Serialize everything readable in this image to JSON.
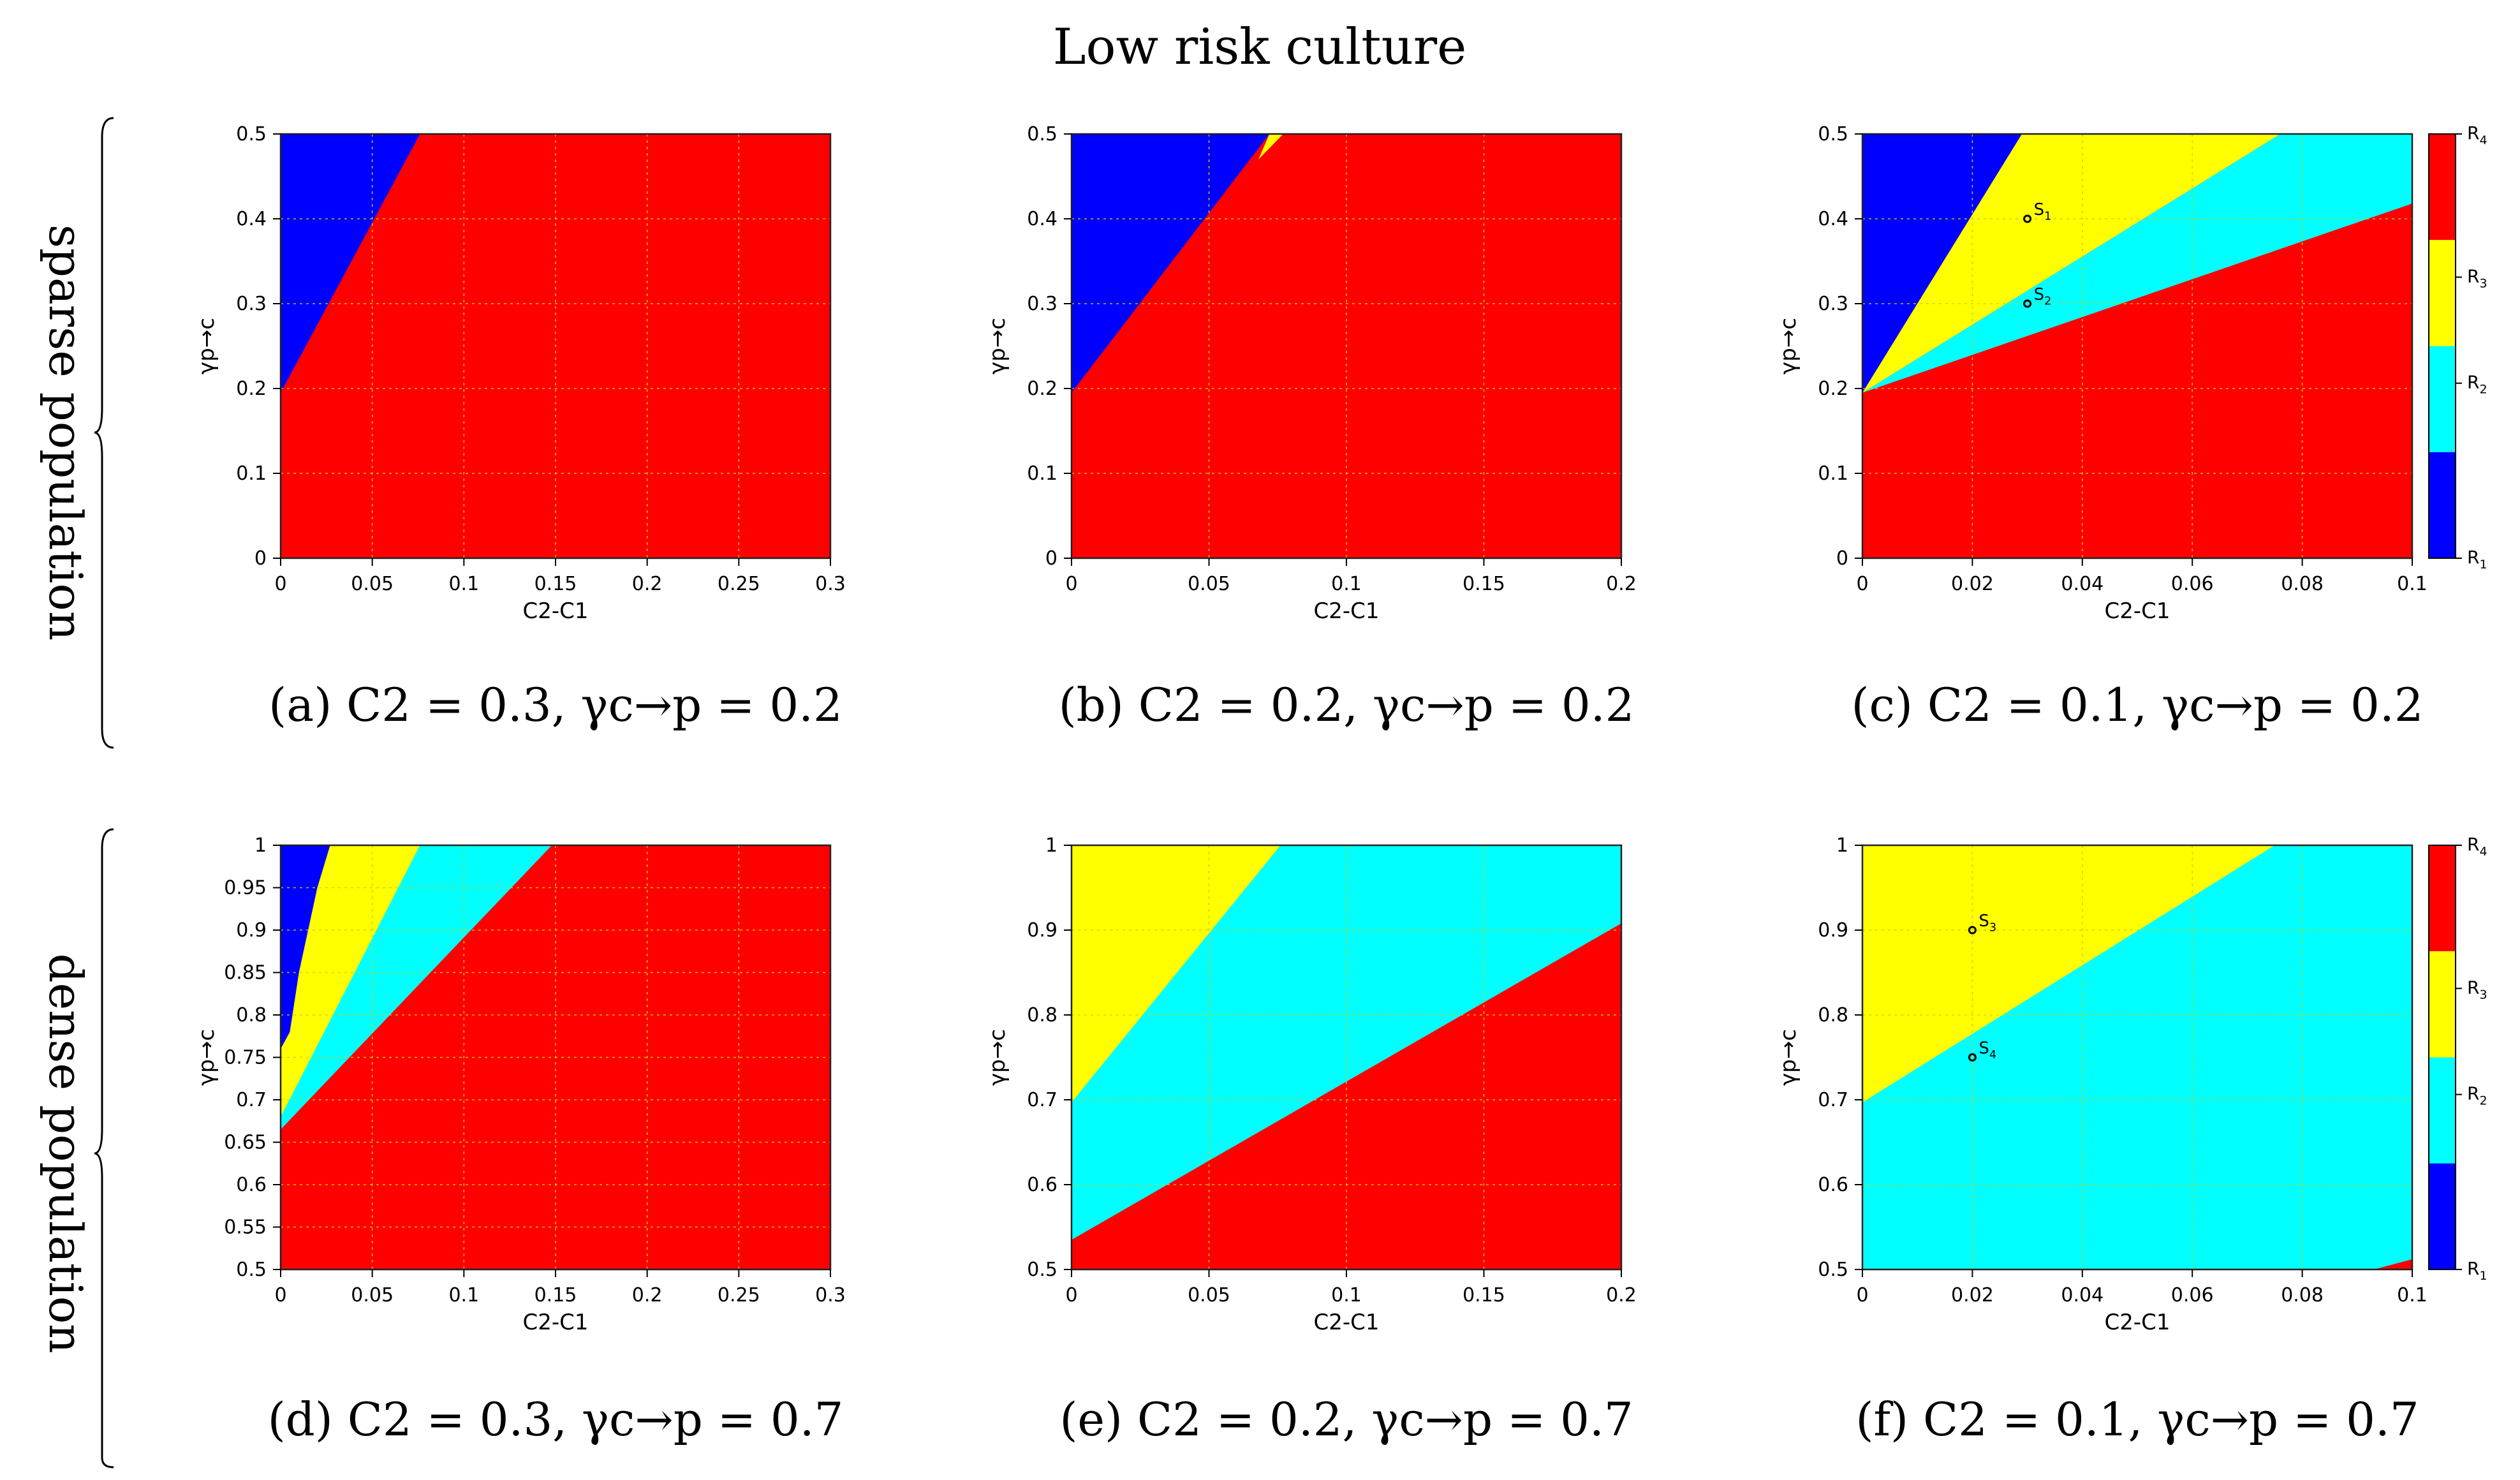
{
  "figure": {
    "title": "Low risk culture",
    "row_labels": [
      "sparse population",
      "dense population"
    ]
  },
  "colors": {
    "R1": "#0000ff",
    "R2": "#00ffff",
    "R3": "#ffff00",
    "R4": "#ff0000",
    "grid": "#c8d200"
  },
  "colorbar": {
    "labels": [
      "R4",
      "R3",
      "R2",
      "R1"
    ]
  },
  "chart_data": [
    {
      "type": "heatmap",
      "id": "a",
      "caption": "(a) C2 = 0.3, γc→p = 0.2",
      "xlabel": "C2-C1",
      "ylabel": "γp→c",
      "xlim": [
        0,
        0.3
      ],
      "ylim": [
        0,
        0.5
      ],
      "xticks": [
        0,
        0.05,
        0.1,
        0.15,
        0.2,
        0.25,
        0.3
      ],
      "xtick_labels": [
        "0",
        "0.05",
        "0.1",
        "0.15",
        "0.2",
        "0.25",
        "0.3"
      ],
      "yticks": [
        0,
        0.1,
        0.2,
        0.3,
        0.4,
        0.5
      ],
      "ytick_labels": [
        "0",
        "0.1",
        "0.2",
        "0.3",
        "0.4",
        "0.5"
      ],
      "background": "R4",
      "regions": [
        {
          "region": "R1",
          "points": [
            [
              0,
              0.195
            ],
            [
              0,
              0.5
            ],
            [
              0.076,
              0.5
            ]
          ]
        }
      ]
    },
    {
      "type": "heatmap",
      "id": "b",
      "caption": "(b) C2 = 0.2, γc→p = 0.2",
      "xlabel": "C2-C1",
      "ylabel": "γp→c",
      "xlim": [
        0,
        0.2
      ],
      "ylim": [
        0,
        0.5
      ],
      "xticks": [
        0,
        0.05,
        0.1,
        0.15,
        0.2
      ],
      "xtick_labels": [
        "0",
        "0.05",
        "0.1",
        "0.15",
        "0.2"
      ],
      "yticks": [
        0,
        0.1,
        0.2,
        0.3,
        0.4,
        0.5
      ],
      "ytick_labels": [
        "0",
        "0.1",
        "0.2",
        "0.3",
        "0.4",
        "0.5"
      ],
      "background": "R4",
      "regions": [
        {
          "region": "R3",
          "points": [
            [
              0.068,
              0.47
            ],
            [
              0.072,
              0.5
            ],
            [
              0.077,
              0.5
            ]
          ]
        },
        {
          "region": "R1",
          "points": [
            [
              0,
              0.195
            ],
            [
              0,
              0.5
            ],
            [
              0.072,
              0.5
            ]
          ]
        }
      ]
    },
    {
      "type": "heatmap",
      "id": "c",
      "caption": "(c) C2 = 0.1, γc→p = 0.2",
      "xlabel": "C2-C1",
      "ylabel": "γp→c",
      "xlim": [
        0,
        0.1
      ],
      "ylim": [
        0,
        0.5
      ],
      "xticks": [
        0,
        0.02,
        0.04,
        0.06,
        0.08,
        0.1
      ],
      "xtick_labels": [
        "0",
        "0.02",
        "0.04",
        "0.06",
        "0.08",
        "0.1"
      ],
      "yticks": [
        0,
        0.1,
        0.2,
        0.3,
        0.4,
        0.5
      ],
      "ytick_labels": [
        "0",
        "0.1",
        "0.2",
        "0.3",
        "0.4",
        "0.5"
      ],
      "background": "R4",
      "colorbar": true,
      "regions": [
        {
          "region": "R2",
          "points": [
            [
              0,
              0.195
            ],
            [
              0.076,
              0.5
            ],
            [
              0.1,
              0.5
            ],
            [
              0.1,
              0.418
            ]
          ]
        },
        {
          "region": "R3",
          "points": [
            [
              0,
              0.195
            ],
            [
              0.029,
              0.5
            ],
            [
              0.076,
              0.5
            ]
          ]
        },
        {
          "region": "R1",
          "points": [
            [
              0,
              0.195
            ],
            [
              0,
              0.5
            ],
            [
              0.029,
              0.5
            ]
          ]
        }
      ],
      "markers": [
        {
          "label": "S1",
          "x": 0.03,
          "y": 0.4
        },
        {
          "label": "S2",
          "x": 0.03,
          "y": 0.3
        }
      ]
    },
    {
      "type": "heatmap",
      "id": "d",
      "caption": "(d) C2 = 0.3, γc→p = 0.7",
      "xlabel": "C2-C1",
      "ylabel": "γp→c",
      "xlim": [
        0,
        0.3
      ],
      "ylim": [
        0.5,
        1
      ],
      "xticks": [
        0,
        0.05,
        0.1,
        0.15,
        0.2,
        0.25,
        0.3
      ],
      "xtick_labels": [
        "0",
        "0.05",
        "0.1",
        "0.15",
        "0.2",
        "0.25",
        "0.3"
      ],
      "yticks": [
        0.5,
        0.55,
        0.6,
        0.65,
        0.7,
        0.75,
        0.8,
        0.85,
        0.9,
        0.95,
        1
      ],
      "ytick_labels": [
        "0.5",
        "0.55",
        "0.6",
        "0.65",
        "0.7",
        "0.75",
        "0.8",
        "0.85",
        "0.9",
        "0.95",
        "1"
      ],
      "background": "R4",
      "regions": [
        {
          "region": "R2",
          "points": [
            [
              0,
              0.665
            ],
            [
              0,
              1
            ],
            [
              0.148,
              1
            ]
          ]
        },
        {
          "region": "R3",
          "points": [
            [
              0,
              0.68
            ],
            [
              0,
              1
            ],
            [
              0.076,
              1
            ]
          ]
        },
        {
          "region": "R1",
          "points": [
            [
              0,
              0.76
            ],
            [
              0,
              1
            ],
            [
              0.027,
              1
            ],
            [
              0.02,
              0.95
            ],
            [
              0.01,
              0.85
            ],
            [
              0.005,
              0.78
            ]
          ]
        }
      ]
    },
    {
      "type": "heatmap",
      "id": "e",
      "caption": "(e) C2 = 0.2, γc→p = 0.7",
      "xlabel": "C2-C1",
      "ylabel": "γp→c",
      "xlim": [
        0,
        0.2
      ],
      "ylim": [
        0.5,
        1
      ],
      "xticks": [
        0,
        0.05,
        0.1,
        0.15,
        0.2
      ],
      "xtick_labels": [
        "0",
        "0.05",
        "0.1",
        "0.15",
        "0.2"
      ],
      "yticks": [
        0.5,
        0.6,
        0.7,
        0.8,
        0.9,
        1
      ],
      "ytick_labels": [
        "0.5",
        "0.6",
        "0.7",
        "0.8",
        "0.9",
        "1"
      ],
      "background": "R4",
      "regions": [
        {
          "region": "R2",
          "points": [
            [
              0,
              0.535
            ],
            [
              0,
              1
            ],
            [
              0.2,
              1
            ],
            [
              0.2,
              0.908
            ]
          ]
        },
        {
          "region": "R3",
          "points": [
            [
              0,
              0.697
            ],
            [
              0,
              1
            ],
            [
              0.076,
              1
            ]
          ]
        }
      ]
    },
    {
      "type": "heatmap",
      "id": "f",
      "caption": "(f) C2 = 0.1, γc→p = 0.7",
      "xlabel": "C2-C1",
      "ylabel": "γp→c",
      "xlim": [
        0,
        0.1
      ],
      "ylim": [
        0.5,
        1
      ],
      "xticks": [
        0,
        0.02,
        0.04,
        0.06,
        0.08,
        0.1
      ],
      "xtick_labels": [
        "0",
        "0.02",
        "0.04",
        "0.06",
        "0.08",
        "0.1"
      ],
      "yticks": [
        0.5,
        0.6,
        0.7,
        0.8,
        0.9,
        1
      ],
      "ytick_labels": [
        "0.5",
        "0.6",
        "0.7",
        "0.8",
        "0.9",
        "1"
      ],
      "background": "R2",
      "colorbar": true,
      "regions": [
        {
          "region": "R3",
          "points": [
            [
              0,
              0.697
            ],
            [
              0,
              1
            ],
            [
              0.075,
              1
            ]
          ]
        },
        {
          "region": "R4",
          "points": [
            [
              0.093,
              0.5
            ],
            [
              0.1,
              0.5
            ],
            [
              0.1,
              0.512
            ]
          ]
        }
      ],
      "markers": [
        {
          "label": "S3",
          "x": 0.02,
          "y": 0.9
        },
        {
          "label": "S4",
          "x": 0.02,
          "y": 0.75
        }
      ]
    }
  ]
}
